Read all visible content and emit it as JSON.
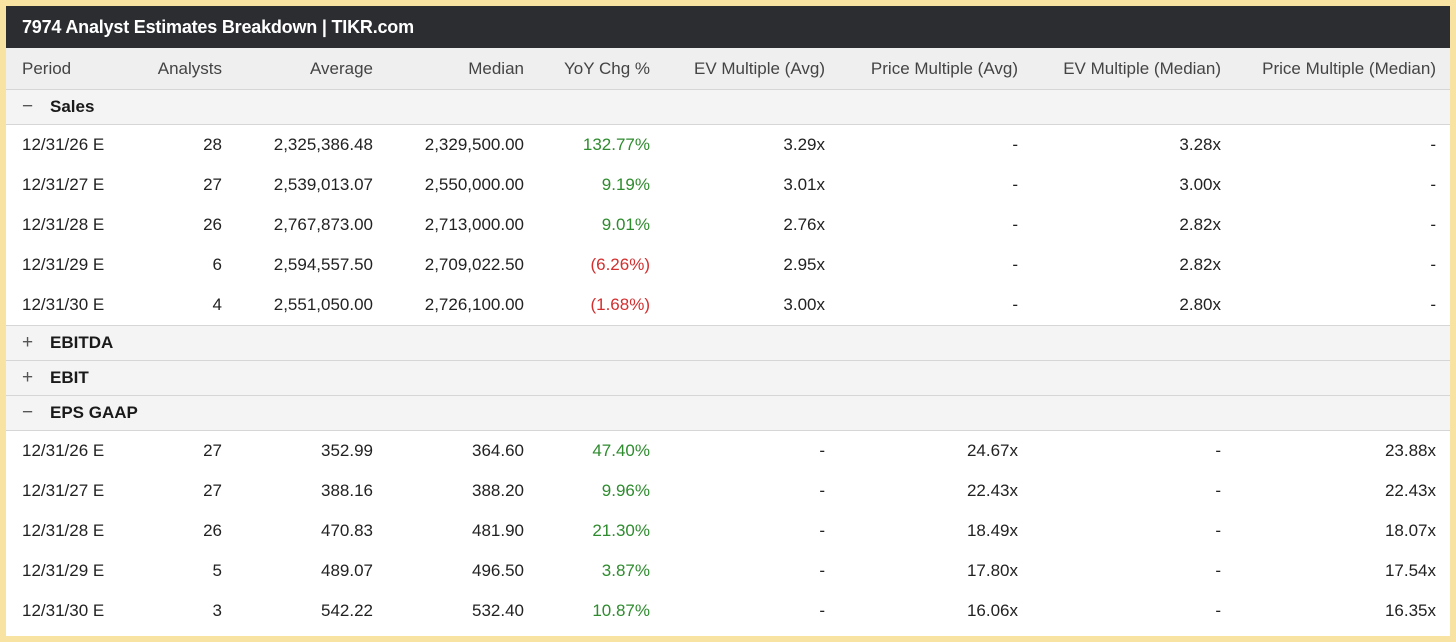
{
  "title": "7974 Analyst Estimates Breakdown | TIKR.com",
  "columns": [
    "Period",
    "Analysts",
    "Average",
    "Median",
    "YoY Chg %",
    "EV Multiple (Avg)",
    "Price Multiple (Avg)",
    "EV Multiple (Median)",
    "Price Multiple (Median)"
  ],
  "colors": {
    "positive": "#2e8b2e",
    "negative": "#d32f2f",
    "header_bg": "#2b2d31",
    "frame": "#f8e3a3"
  },
  "sections": [
    {
      "label": "Sales",
      "toggle": "−",
      "expanded": true,
      "rows": [
        {
          "period": "12/31/26 E",
          "analysts": "28",
          "average": "2,325,386.48",
          "median": "2,329,500.00",
          "yoy": "132.77%",
          "yoy_sign": "pos",
          "ev_avg": "3.29x",
          "price_avg": "-",
          "ev_med": "3.28x",
          "price_med": "-"
        },
        {
          "period": "12/31/27 E",
          "analysts": "27",
          "average": "2,539,013.07",
          "median": "2,550,000.00",
          "yoy": "9.19%",
          "yoy_sign": "pos",
          "ev_avg": "3.01x",
          "price_avg": "-",
          "ev_med": "3.00x",
          "price_med": "-"
        },
        {
          "period": "12/31/28 E",
          "analysts": "26",
          "average": "2,767,873.00",
          "median": "2,713,000.00",
          "yoy": "9.01%",
          "yoy_sign": "pos",
          "ev_avg": "2.76x",
          "price_avg": "-",
          "ev_med": "2.82x",
          "price_med": "-"
        },
        {
          "period": "12/31/29 E",
          "analysts": "6",
          "average": "2,594,557.50",
          "median": "2,709,022.50",
          "yoy": "(6.26%)",
          "yoy_sign": "neg",
          "ev_avg": "2.95x",
          "price_avg": "-",
          "ev_med": "2.82x",
          "price_med": "-"
        },
        {
          "period": "12/31/30 E",
          "analysts": "4",
          "average": "2,551,050.00",
          "median": "2,726,100.00",
          "yoy": "(1.68%)",
          "yoy_sign": "neg",
          "ev_avg": "3.00x",
          "price_avg": "-",
          "ev_med": "2.80x",
          "price_med": "-"
        }
      ]
    },
    {
      "label": "EBITDA",
      "toggle": "+",
      "expanded": false,
      "rows": []
    },
    {
      "label": "EBIT",
      "toggle": "+",
      "expanded": false,
      "rows": []
    },
    {
      "label": "EPS GAAP",
      "toggle": "−",
      "expanded": true,
      "rows": [
        {
          "period": "12/31/26 E",
          "analysts": "27",
          "average": "352.99",
          "median": "364.60",
          "yoy": "47.40%",
          "yoy_sign": "pos",
          "ev_avg": "-",
          "price_avg": "24.67x",
          "ev_med": "-",
          "price_med": "23.88x"
        },
        {
          "period": "12/31/27 E",
          "analysts": "27",
          "average": "388.16",
          "median": "388.20",
          "yoy": "9.96%",
          "yoy_sign": "pos",
          "ev_avg": "-",
          "price_avg": "22.43x",
          "ev_med": "-",
          "price_med": "22.43x"
        },
        {
          "period": "12/31/28 E",
          "analysts": "26",
          "average": "470.83",
          "median": "481.90",
          "yoy": "21.30%",
          "yoy_sign": "pos",
          "ev_avg": "-",
          "price_avg": "18.49x",
          "ev_med": "-",
          "price_med": "18.07x"
        },
        {
          "period": "12/31/29 E",
          "analysts": "5",
          "average": "489.07",
          "median": "496.50",
          "yoy": "3.87%",
          "yoy_sign": "pos",
          "ev_avg": "-",
          "price_avg": "17.80x",
          "ev_med": "-",
          "price_med": "17.54x"
        },
        {
          "period": "12/31/30 E",
          "analysts": "3",
          "average": "542.22",
          "median": "532.40",
          "yoy": "10.87%",
          "yoy_sign": "pos",
          "ev_avg": "-",
          "price_avg": "16.06x",
          "ev_med": "-",
          "price_med": "16.35x"
        }
      ]
    }
  ]
}
